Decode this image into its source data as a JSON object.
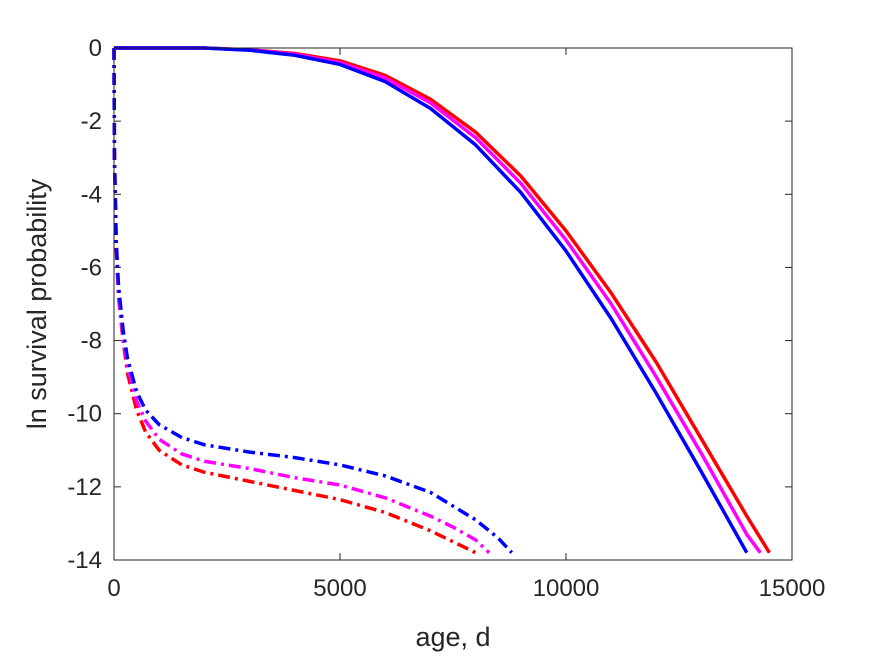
{
  "chart_data": {
    "type": "line",
    "title": "",
    "xlabel": "age, d",
    "ylabel": "ln survival probability",
    "xlim": [
      0,
      15000
    ],
    "ylim": [
      -14,
      0
    ],
    "xticks": [
      0,
      5000,
      10000,
      15000
    ],
    "xtick_labels": [
      "0",
      "5000",
      "10000",
      "15000"
    ],
    "yticks": [
      0,
      -2,
      -4,
      -6,
      -8,
      -10,
      -12,
      -14
    ],
    "ytick_labels": [
      "0",
      "-2",
      "-4",
      "-6",
      "-8",
      "-10",
      "-12",
      "-14"
    ],
    "grid": false,
    "legend": "none",
    "series": [
      {
        "color": "#ff0000",
        "style": "solid",
        "x": [
          0,
          1000,
          2000,
          3000,
          4000,
          5000,
          6000,
          7000,
          8000,
          9000,
          10000,
          11000,
          12000,
          13000,
          14000,
          14500
        ],
        "y": [
          0,
          0,
          0,
          -0.05,
          -0.15,
          -0.35,
          -0.75,
          -1.4,
          -2.3,
          -3.5,
          -5.0,
          -6.7,
          -8.6,
          -10.7,
          -12.8,
          -13.8
        ]
      },
      {
        "color": "#ff00ff",
        "style": "solid",
        "x": [
          0,
          1000,
          2000,
          3000,
          4000,
          5000,
          6000,
          7000,
          8000,
          9000,
          10000,
          11000,
          12000,
          13000,
          14000,
          14300
        ],
        "y": [
          0,
          0,
          0,
          -0.05,
          -0.17,
          -0.4,
          -0.82,
          -1.5,
          -2.45,
          -3.7,
          -5.25,
          -7.0,
          -9.0,
          -11.1,
          -13.3,
          -13.8
        ]
      },
      {
        "color": "#0000ff",
        "style": "solid",
        "x": [
          0,
          1000,
          2000,
          3000,
          4000,
          5000,
          6000,
          7000,
          8000,
          9000,
          10000,
          11000,
          12000,
          13000,
          14000
        ],
        "y": [
          0,
          0,
          0,
          -0.06,
          -0.2,
          -0.45,
          -0.92,
          -1.65,
          -2.65,
          -3.95,
          -5.55,
          -7.4,
          -9.45,
          -11.6,
          -13.8
        ]
      },
      {
        "color": "#ff0000",
        "style": "dashdot",
        "x": [
          0,
          10,
          50,
          100,
          200,
          300,
          500,
          700,
          1000,
          1500,
          2000,
          3000,
          4000,
          5000,
          6000,
          7000,
          7500,
          8000
        ],
        "y": [
          0,
          -3,
          -5.5,
          -6.8,
          -8.0,
          -8.9,
          -9.9,
          -10.5,
          -11.0,
          -11.4,
          -11.6,
          -11.85,
          -12.1,
          -12.35,
          -12.7,
          -13.2,
          -13.5,
          -13.8
        ]
      },
      {
        "color": "#ff00ff",
        "style": "dashdot",
        "x": [
          0,
          10,
          50,
          100,
          200,
          300,
          500,
          700,
          1000,
          1500,
          2000,
          3000,
          4000,
          5000,
          6000,
          7000,
          7500,
          8000,
          8300
        ],
        "y": [
          0,
          -3,
          -5.4,
          -6.7,
          -7.9,
          -8.7,
          -9.65,
          -10.2,
          -10.7,
          -11.1,
          -11.3,
          -11.5,
          -11.75,
          -11.95,
          -12.3,
          -12.8,
          -13.1,
          -13.45,
          -13.8
        ]
      },
      {
        "color": "#0000ff",
        "style": "dashdot",
        "x": [
          0,
          10,
          50,
          100,
          200,
          300,
          500,
          700,
          1000,
          1500,
          2000,
          3000,
          4000,
          5000,
          6000,
          7000,
          8000,
          8500,
          8800
        ],
        "y": [
          0,
          -3,
          -5.3,
          -6.5,
          -7.7,
          -8.5,
          -9.4,
          -9.9,
          -10.3,
          -10.65,
          -10.85,
          -11.05,
          -11.2,
          -11.4,
          -11.7,
          -12.15,
          -12.9,
          -13.4,
          -13.8
        ]
      }
    ]
  }
}
